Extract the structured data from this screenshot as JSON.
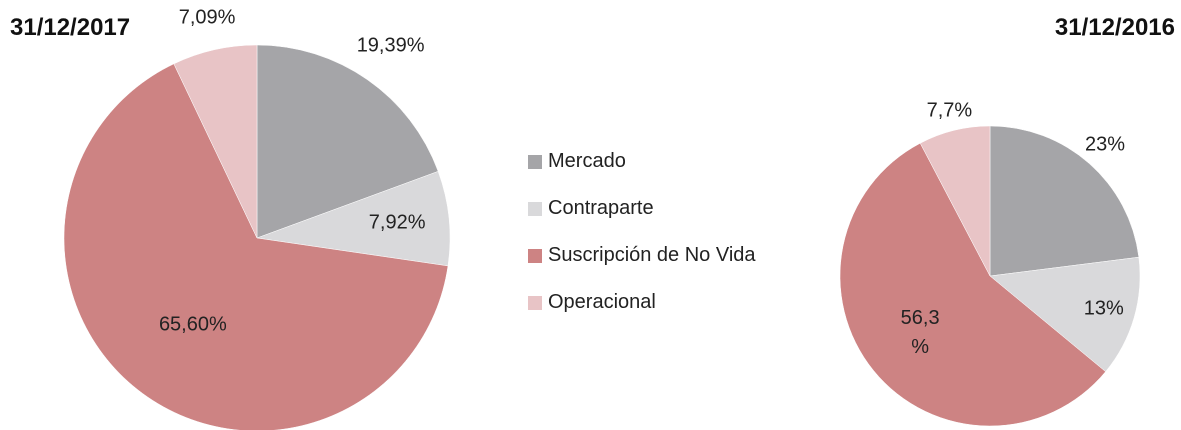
{
  "chart_data": [
    {
      "type": "pie",
      "title": "31/12/2017",
      "categories": [
        "Mercado",
        "Contraparte",
        "Suscripción de No Vida",
        "Operacional"
      ],
      "values": [
        19.39,
        7.92,
        65.6,
        7.09
      ],
      "value_labels": [
        "19,39%",
        "7,92%",
        "65,60%",
        "7,09%"
      ],
      "colors": [
        "#a5a5a8",
        "#d9d9db",
        "#cd8383",
        "#e8c4c6"
      ],
      "legend": "right"
    },
    {
      "type": "pie",
      "title": "31/12/2016",
      "categories": [
        "Mercado",
        "Contraparte",
        "Suscripción de No Vida",
        "Operacional"
      ],
      "values": [
        23,
        13,
        56.3,
        7.7
      ],
      "value_labels": [
        "23%",
        "13%",
        "56,3 %",
        "7,7%"
      ],
      "colors": [
        "#a5a5a8",
        "#d9d9db",
        "#cd8383",
        "#e8c4c6"
      ]
    }
  ]
}
